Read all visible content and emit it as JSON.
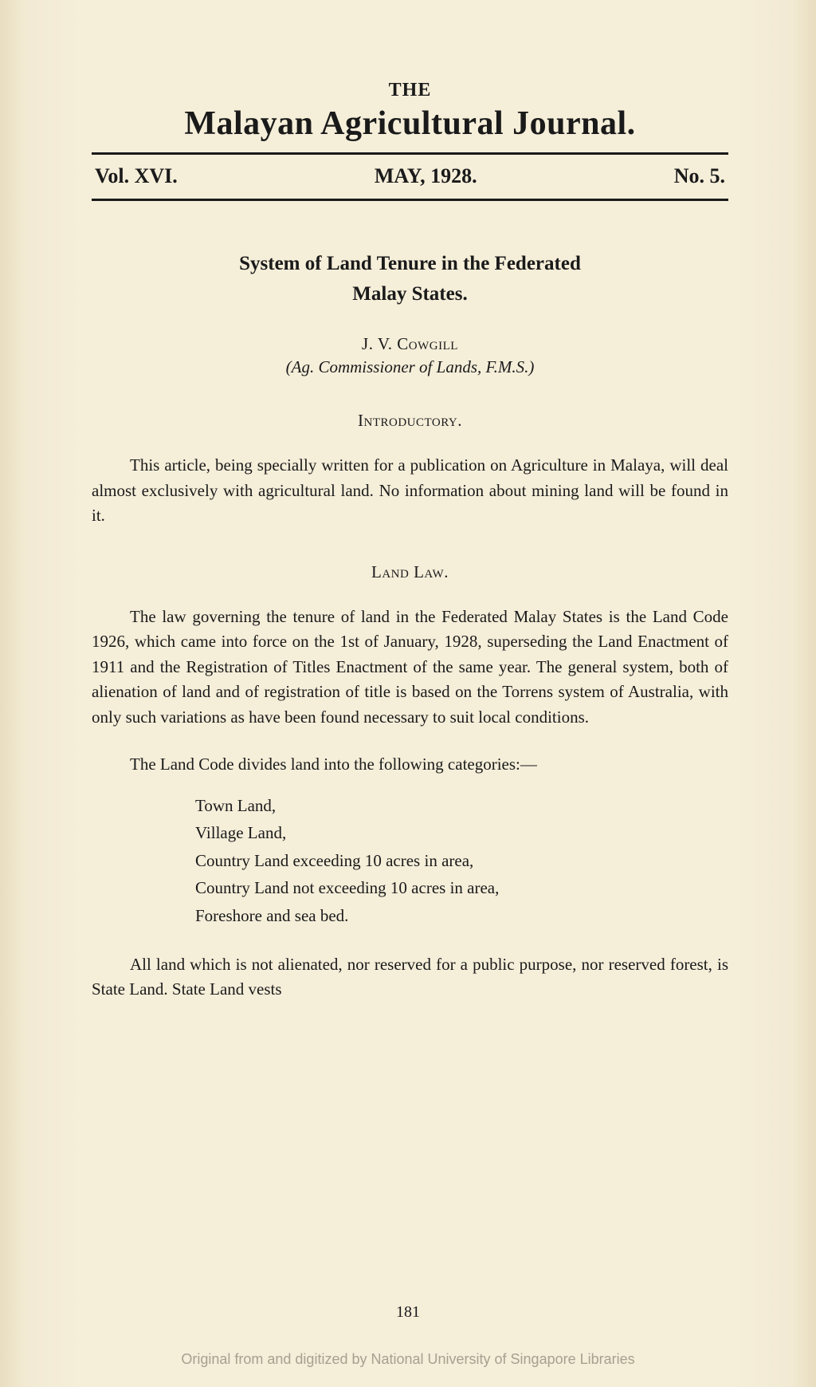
{
  "header": {
    "the": "THE",
    "title": "Malayan Agricultural Journal."
  },
  "issue": {
    "volume": "Vol. XVI.",
    "date": "MAY, 1928.",
    "number": "No. 5."
  },
  "article": {
    "title_line1": "System of Land Tenure in the Federated",
    "title_line2": "Malay States.",
    "author_name": "J. V. Cowgill",
    "author_role": "(Ag. Commissioner of Lands, F.M.S.)"
  },
  "sections": {
    "s1_heading": "Introductory.",
    "s1_body": "This article, being specially written for a publication on Agriculture in Malaya, will deal almost exclusively with agricultural land. No information about mining land will be found in it.",
    "s2_heading": "Land Law.",
    "s2_body1": "The law governing the tenure of land in the Federated Malay States is the Land Code 1926, which came into force on the 1st of January, 1928, superseding the Land Enactment of 1911 and the Registration of Titles Enactment of the same year. The general system, both of alienation of land and of registration of title is based on the Torrens system of Australia, with only such variations as have been found necessary to suit local conditions.",
    "s2_body2": "The Land Code divides land into the following categories:—",
    "categories": [
      "Town Land,",
      "Village Land,",
      "Country Land exceeding 10 acres in area,",
      "Country Land not exceeding 10 acres in area,",
      "Foreshore and sea bed."
    ],
    "s2_body3": "All land which is not alienated, nor reserved for a public purpose, nor reserved forest, is State Land. State Land vests"
  },
  "page_number": "181",
  "watermark": "Original from and digitized by National University of Singapore Libraries",
  "styling": {
    "page_bg": "#f5eed9",
    "text_color": "#1a1a1a",
    "watermark_color": "#a8a090",
    "body_fontsize": 21,
    "title_fontsize": 42,
    "issue_fontsize": 26,
    "article_title_fontsize": 25
  }
}
